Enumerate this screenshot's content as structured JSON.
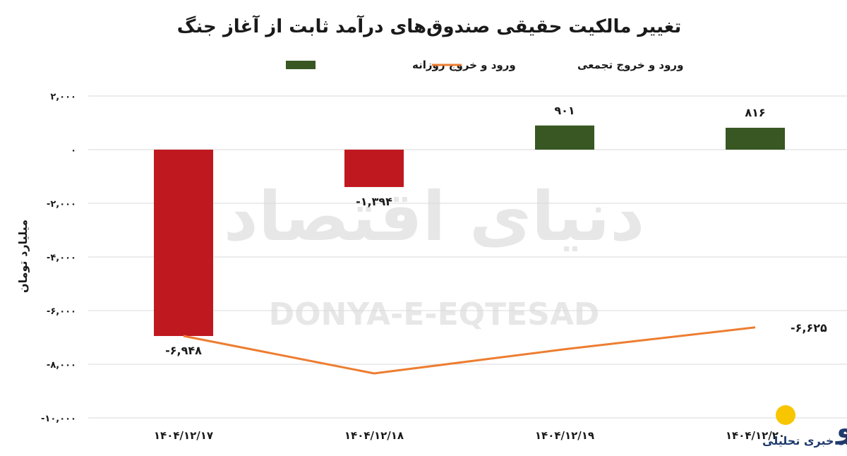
{
  "chart_data": {
    "type": "bar",
    "title": "تغییر مالکیت حقیقی صندوق‌های درآمد ثابت از آغاز جنگ",
    "ylabel": "میلیارد تومان",
    "xlabel": "",
    "ylim": [
      -10000,
      2000
    ],
    "yticks": [
      {
        "value": 2000,
        "label": "۲,۰۰۰"
      },
      {
        "value": 0,
        "label": "۰"
      },
      {
        "value": -2000,
        "label": "-۲,۰۰۰"
      },
      {
        "value": -4000,
        "label": "-۴,۰۰۰"
      },
      {
        "value": -6000,
        "label": "-۶,۰۰۰"
      },
      {
        "value": -8000,
        "label": "-۸,۰۰۰"
      },
      {
        "value": -10000,
        "label": "-۱۰,۰۰۰"
      }
    ],
    "categories": [
      "۱۴۰۴/۱۲/۱۷",
      "۱۴۰۴/۱۲/۱۸",
      "۱۴۰۴/۱۲/۱۹",
      "۱۴۰۴/۱۲/۲۰"
    ],
    "grid": true,
    "legend_position": "top",
    "series": [
      {
        "name": "ورود و خروج روزانه",
        "kind": "bar",
        "values": [
          -6948,
          -1394,
          901,
          816
        ],
        "labels": [
          "-۶,۹۴۸",
          "-۱,۳۹۴",
          "۹۰۱",
          "۸۱۶"
        ],
        "positive_color": "#385723",
        "negative_color": "#c0181f"
      },
      {
        "name": "ورود و خروج تجمعی",
        "kind": "line",
        "values": [
          -6948,
          -8342,
          -7441,
          -6625
        ],
        "labels": [
          "",
          "",
          "",
          "-۶,۶۲۵"
        ],
        "color": "#ed7d31"
      }
    ]
  },
  "watermark": {
    "persian": "دنیای اقتصاد",
    "latin": "DONYA-E-EQTESAD"
  },
  "logo": {
    "wordmark": "روزنو",
    "tagline": "پایگاه خبری تحلیلی",
    "accent_color": "#f7c600",
    "dark_color": "#1f3a6e"
  }
}
